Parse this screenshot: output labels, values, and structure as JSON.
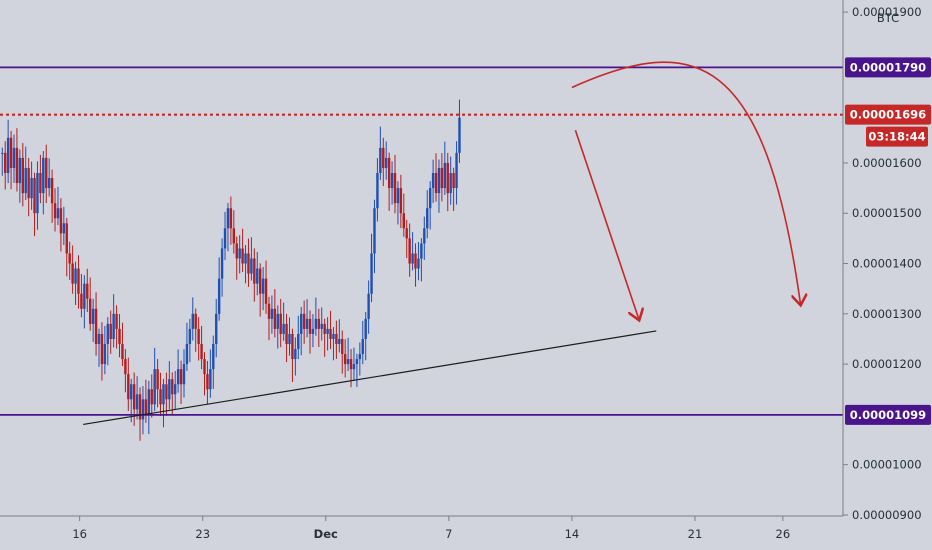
{
  "chart_data": {
    "type": "candlestick",
    "currency_label": "BTC",
    "y_axis": {
      "ticks": [
        {
          "value": 1.9e-05,
          "label": "0.00001900"
        },
        {
          "value": 1.6e-05,
          "label": "0.00001600"
        },
        {
          "value": 1.5e-05,
          "label": "0.00001500"
        },
        {
          "value": 1.4e-05,
          "label": "0.00001400"
        },
        {
          "value": 1.3e-05,
          "label": "0.00001300"
        },
        {
          "value": 1.2e-05,
          "label": "0.00001200"
        },
        {
          "value": 1e-05,
          "label": "0.00001000"
        },
        {
          "value": 9e-06,
          "label": "0.00000900"
        }
      ],
      "ylim": [
        8.98e-06,
        1.924e-05
      ]
    },
    "x_axis": {
      "ticks": [
        {
          "day": 16,
          "label": "16",
          "bold": false
        },
        {
          "day": 23,
          "label": "23",
          "bold": false
        },
        {
          "day": 30,
          "label": "Dec",
          "bold": true
        },
        {
          "day": 37,
          "label": "7",
          "bold": false
        },
        {
          "day": 44,
          "label": "14",
          "bold": false
        },
        {
          "day": 51,
          "label": "21",
          "bold": false
        },
        {
          "day": 56,
          "label": "26",
          "bold": false
        }
      ],
      "range_days": [
        11.47,
        59.42
      ]
    },
    "horizontal_levels": [
      {
        "name": "resistance",
        "value": 1.79e-05,
        "label": "0.00001790",
        "color": "#4a148c",
        "style": "solid"
      },
      {
        "name": "current-price",
        "value": 1.696e-05,
        "label": "0.00001696",
        "color": "#c62828",
        "style": "dotted"
      },
      {
        "name": "support",
        "value": 1.099e-05,
        "label": "0.00001099",
        "color": "#4a148c",
        "style": "solid"
      }
    ],
    "countdown": "03:18:44",
    "trendline": {
      "start": {
        "day": 16.2,
        "value": 1.08e-05
      },
      "end": {
        "day": 48.8,
        "value": 1.266e-05
      }
    },
    "close_series": {
      "start_day": 11.6,
      "step_days": 0.1667,
      "values": [
        1.62e-05,
        1.58e-05,
        1.65e-05,
        1.59e-05,
        1.63e-05,
        1.56e-05,
        1.61e-05,
        1.54e-05,
        1.59e-05,
        1.53e-05,
        1.57e-05,
        1.5e-05,
        1.58e-05,
        1.54e-05,
        1.61e-05,
        1.55e-05,
        1.57e-05,
        1.52e-05,
        1.49e-05,
        1.51e-05,
        1.46e-05,
        1.48e-05,
        1.42e-05,
        1.4e-05,
        1.36e-05,
        1.39e-05,
        1.34e-05,
        1.31e-05,
        1.36e-05,
        1.33e-05,
        1.28e-05,
        1.31e-05,
        1.24e-05,
        1.26e-05,
        1.2e-05,
        1.24e-05,
        1.28e-05,
        1.25e-05,
        1.3e-05,
        1.27e-05,
        1.24e-05,
        1.21e-05,
        1.18e-05,
        1.13e-05,
        1.16e-05,
        1.11e-05,
        1.14e-05,
        1.09e-05,
        1.13e-05,
        1.1e-05,
        1.15e-05,
        1.12e-05,
        1.19e-05,
        1.15e-05,
        1.12e-05,
        1.16e-05,
        1.13e-05,
        1.17e-05,
        1.14e-05,
        1.16e-05,
        1.19e-05,
        1.16e-05,
        1.2e-05,
        1.24e-05,
        1.27e-05,
        1.3e-05,
        1.27e-05,
        1.24e-05,
        1.21e-05,
        1.18e-05,
        1.15e-05,
        1.19e-05,
        1.24e-05,
        1.3e-05,
        1.37e-05,
        1.43e-05,
        1.47e-05,
        1.51e-05,
        1.47e-05,
        1.44e-05,
        1.41e-05,
        1.43e-05,
        1.4e-05,
        1.42e-05,
        1.38e-05,
        1.41e-05,
        1.36e-05,
        1.39e-05,
        1.34e-05,
        1.37e-05,
        1.32e-05,
        1.29e-05,
        1.31e-05,
        1.27e-05,
        1.3e-05,
        1.26e-05,
        1.28e-05,
        1.24e-05,
        1.26e-05,
        1.21e-05,
        1.23e-05,
        1.26e-05,
        1.3e-05,
        1.27e-05,
        1.29e-05,
        1.26e-05,
        1.27e-05,
        1.29e-05,
        1.27e-05,
        1.28e-05,
        1.26e-05,
        1.27e-05,
        1.25e-05,
        1.26e-05,
        1.24e-05,
        1.25e-05,
        1.22e-05,
        1.2e-05,
        1.21e-05,
        1.19e-05,
        1.2e-05,
        1.21e-05,
        1.22e-05,
        1.25e-05,
        1.29e-05,
        1.34e-05,
        1.42e-05,
        1.51e-05,
        1.58e-05,
        1.63e-05,
        1.59e-05,
        1.61e-05,
        1.55e-05,
        1.58e-05,
        1.52e-05,
        1.55e-05,
        1.5e-05,
        1.47e-05,
        1.45e-05,
        1.4e-05,
        1.42e-05,
        1.39e-05,
        1.41e-05,
        1.44e-05,
        1.47e-05,
        1.51e-05,
        1.55e-05,
        1.58e-05,
        1.54e-05,
        1.59e-05,
        1.55e-05,
        1.6e-05,
        1.54e-05,
        1.58e-05,
        1.55e-05,
        1.62e-05,
        1.69e-05
      ]
    },
    "forecast_arrows": [
      {
        "name": "short-term-drop",
        "from": {
          "day": 44.2,
          "value": 1.665e-05
        },
        "to": {
          "day": 47.8,
          "value": 1.29e-05
        }
      },
      {
        "name": "arc-then-drop",
        "from": {
          "day": 44.0,
          "value": 1.75e-05
        },
        "peak": {
          "day": 51.0,
          "value": 1.82e-05
        },
        "to": {
          "day": 57.0,
          "value": 1.32e-05
        }
      }
    ]
  }
}
